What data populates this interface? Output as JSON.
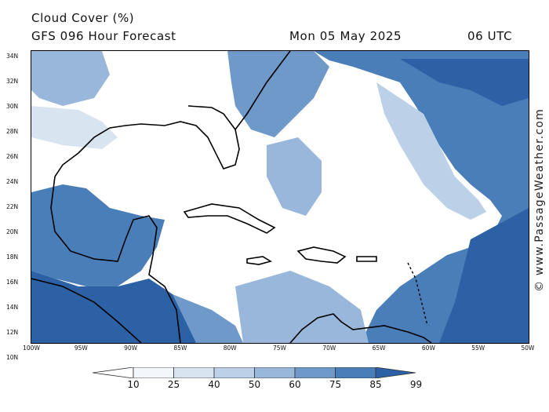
{
  "header": {
    "title": "Cloud Cover (%)",
    "subtitle": "GFS 096 Hour Forecast",
    "date": "Mon 05 May 2025",
    "time": "06 UTC"
  },
  "map": {
    "lat_labels": [
      "34N",
      "32N",
      "30N",
      "28N",
      "26N",
      "24N",
      "22N",
      "20N",
      "18N",
      "16N",
      "14N",
      "12N",
      "10N"
    ],
    "lon_labels": [
      "100W",
      "95W",
      "90W",
      "85W",
      "80W",
      "75W",
      "70W",
      "65W",
      "60W",
      "55W",
      "50W"
    ],
    "colors": {
      "c10": "#ffffff",
      "c25": "#f3f6fb",
      "c40": "#d9e4f1",
      "c50": "#bcd0e7",
      "c60": "#98b7db",
      "c75": "#6f99c9",
      "c85": "#4a7eb8",
      "c99": "#2c62a5"
    }
  },
  "legend": {
    "values": [
      "10",
      "25",
      "40",
      "50",
      "60",
      "75",
      "85",
      "99"
    ]
  },
  "watermark": "© www.PassageWeather.com"
}
